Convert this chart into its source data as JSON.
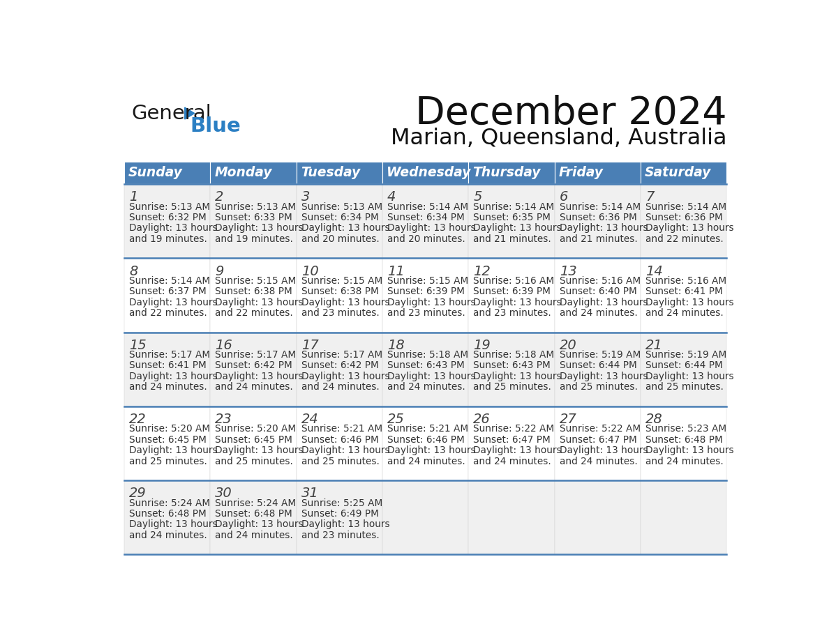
{
  "title": "December 2024",
  "subtitle": "Marian, Queensland, Australia",
  "days_of_week": [
    "Sunday",
    "Monday",
    "Tuesday",
    "Wednesday",
    "Thursday",
    "Friday",
    "Saturday"
  ],
  "header_bg": "#4A7FB5",
  "header_text": "#FFFFFF",
  "row_bg_odd": "#F0F0F0",
  "row_bg_even": "#FFFFFF",
  "text_color": "#333333",
  "day_num_color": "#555555",
  "border_color": "#4A7FB5",
  "calendar_data": [
    [
      {
        "day": 1,
        "sunrise": "5:13 AM",
        "sunset": "6:32 PM",
        "daylight": "13 hours\nand 19 minutes."
      },
      {
        "day": 2,
        "sunrise": "5:13 AM",
        "sunset": "6:33 PM",
        "daylight": "13 hours\nand 19 minutes."
      },
      {
        "day": 3,
        "sunrise": "5:13 AM",
        "sunset": "6:34 PM",
        "daylight": "13 hours\nand 20 minutes."
      },
      {
        "day": 4,
        "sunrise": "5:14 AM",
        "sunset": "6:34 PM",
        "daylight": "13 hours\nand 20 minutes."
      },
      {
        "day": 5,
        "sunrise": "5:14 AM",
        "sunset": "6:35 PM",
        "daylight": "13 hours\nand 21 minutes."
      },
      {
        "day": 6,
        "sunrise": "5:14 AM",
        "sunset": "6:36 PM",
        "daylight": "13 hours\nand 21 minutes."
      },
      {
        "day": 7,
        "sunrise": "5:14 AM",
        "sunset": "6:36 PM",
        "daylight": "13 hours\nand 22 minutes."
      }
    ],
    [
      {
        "day": 8,
        "sunrise": "5:14 AM",
        "sunset": "6:37 PM",
        "daylight": "13 hours\nand 22 minutes."
      },
      {
        "day": 9,
        "sunrise": "5:15 AM",
        "sunset": "6:38 PM",
        "daylight": "13 hours\nand 22 minutes."
      },
      {
        "day": 10,
        "sunrise": "5:15 AM",
        "sunset": "6:38 PM",
        "daylight": "13 hours\nand 23 minutes."
      },
      {
        "day": 11,
        "sunrise": "5:15 AM",
        "sunset": "6:39 PM",
        "daylight": "13 hours\nand 23 minutes."
      },
      {
        "day": 12,
        "sunrise": "5:16 AM",
        "sunset": "6:39 PM",
        "daylight": "13 hours\nand 23 minutes."
      },
      {
        "day": 13,
        "sunrise": "5:16 AM",
        "sunset": "6:40 PM",
        "daylight": "13 hours\nand 24 minutes."
      },
      {
        "day": 14,
        "sunrise": "5:16 AM",
        "sunset": "6:41 PM",
        "daylight": "13 hours\nand 24 minutes."
      }
    ],
    [
      {
        "day": 15,
        "sunrise": "5:17 AM",
        "sunset": "6:41 PM",
        "daylight": "13 hours\nand 24 minutes."
      },
      {
        "day": 16,
        "sunrise": "5:17 AM",
        "sunset": "6:42 PM",
        "daylight": "13 hours\nand 24 minutes."
      },
      {
        "day": 17,
        "sunrise": "5:17 AM",
        "sunset": "6:42 PM",
        "daylight": "13 hours\nand 24 minutes."
      },
      {
        "day": 18,
        "sunrise": "5:18 AM",
        "sunset": "6:43 PM",
        "daylight": "13 hours\nand 24 minutes."
      },
      {
        "day": 19,
        "sunrise": "5:18 AM",
        "sunset": "6:43 PM",
        "daylight": "13 hours\nand 25 minutes."
      },
      {
        "day": 20,
        "sunrise": "5:19 AM",
        "sunset": "6:44 PM",
        "daylight": "13 hours\nand 25 minutes."
      },
      {
        "day": 21,
        "sunrise": "5:19 AM",
        "sunset": "6:44 PM",
        "daylight": "13 hours\nand 25 minutes."
      }
    ],
    [
      {
        "day": 22,
        "sunrise": "5:20 AM",
        "sunset": "6:45 PM",
        "daylight": "13 hours\nand 25 minutes."
      },
      {
        "day": 23,
        "sunrise": "5:20 AM",
        "sunset": "6:45 PM",
        "daylight": "13 hours\nand 25 minutes."
      },
      {
        "day": 24,
        "sunrise": "5:21 AM",
        "sunset": "6:46 PM",
        "daylight": "13 hours\nand 25 minutes."
      },
      {
        "day": 25,
        "sunrise": "5:21 AM",
        "sunset": "6:46 PM",
        "daylight": "13 hours\nand 24 minutes."
      },
      {
        "day": 26,
        "sunrise": "5:22 AM",
        "sunset": "6:47 PM",
        "daylight": "13 hours\nand 24 minutes."
      },
      {
        "day": 27,
        "sunrise": "5:22 AM",
        "sunset": "6:47 PM",
        "daylight": "13 hours\nand 24 minutes."
      },
      {
        "day": 28,
        "sunrise": "5:23 AM",
        "sunset": "6:48 PM",
        "daylight": "13 hours\nand 24 minutes."
      }
    ],
    [
      {
        "day": 29,
        "sunrise": "5:24 AM",
        "sunset": "6:48 PM",
        "daylight": "13 hours\nand 24 minutes."
      },
      {
        "day": 30,
        "sunrise": "5:24 AM",
        "sunset": "6:48 PM",
        "daylight": "13 hours\nand 24 minutes."
      },
      {
        "day": 31,
        "sunrise": "5:25 AM",
        "sunset": "6:49 PM",
        "daylight": "13 hours\nand 23 minutes."
      },
      null,
      null,
      null,
      null
    ]
  ],
  "logo_general_color": "#1a1a1a",
  "logo_blue_color": "#2B7FC3",
  "logo_triangle_color": "#2B7FC3",
  "fig_width": 11.88,
  "fig_height": 9.18,
  "dpi": 100
}
